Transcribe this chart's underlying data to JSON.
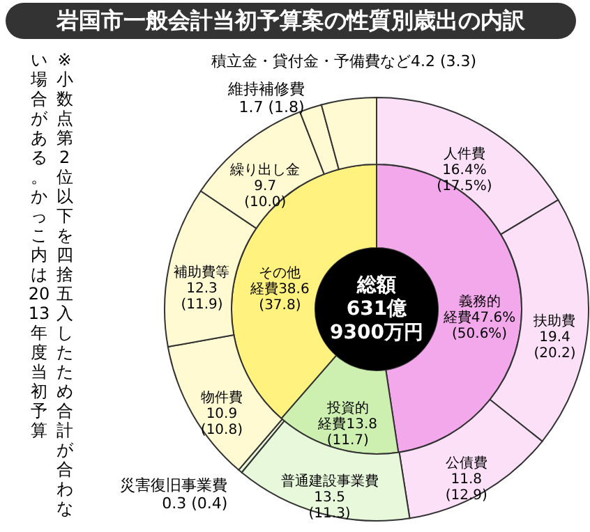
{
  "chart_data": [
    {
      "type": "donut",
      "title": "岩国市一般会計当初予算案の性質別歳出の内訳",
      "categories": [
        "義務的経費",
        "投資的経費",
        "その他経費"
      ],
      "values": [
        47.6,
        13.8,
        38.6
      ],
      "colors": [
        "#f2a8ea",
        "#cdf0b0",
        "#fff27e"
      ],
      "value_labels": [
        "47.6% (50.6%)",
        "13.8 (11.7)",
        "38.6 (37.8)"
      ],
      "annotations": [
        "総額",
        "631億",
        "9300万円",
        "※小数点第2位以下を四捨五入したため合計が合わない場合がある。かっこ内は2013年度当初予算"
      ]
    },
    {
      "type": "donut",
      "categories": [
        "人件費",
        "扶助費",
        "公債費",
        "普通建設事業費",
        "災害復旧事業費",
        "物件費",
        "補助費等",
        "繰り出し金",
        "維持補修費",
        "積立金・貸付金・予備費など"
      ],
      "values": [
        16.4,
        19.4,
        11.8,
        13.5,
        0.3,
        10.9,
        12.3,
        9.7,
        1.7,
        4.2
      ],
      "colors": [
        "#fbe0f8",
        "#fbe0f8",
        "#fbe0f8",
        "#e8f8da",
        "#e8f8da",
        "#fffad2",
        "#fffad2",
        "#fffad2",
        "#fffad2",
        "#fffad2"
      ],
      "value_labels": [
        "16.4% (17.5%)",
        "19.4 (20.2)",
        "11.8 (12.9)",
        "13.5 (11.3)",
        "0.3 (0.4)",
        "10.9 (10.8)",
        "12.3 (11.9)",
        "9.7 (10.0)",
        "1.7 (1.8)",
        "4.2 (3.3)"
      ]
    }
  ]
}
